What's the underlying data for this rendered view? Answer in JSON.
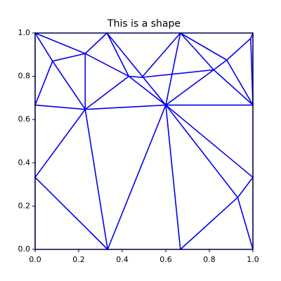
{
  "chart_data": {
    "type": "triplot",
    "title": "This is a shape",
    "color": "#0000ee",
    "x": [
      0,
      0.08,
      0.23,
      0.33,
      0.43,
      0.49,
      0.667,
      0.82,
      0.88,
      0.99,
      1,
      1,
      0,
      0.23,
      0.6,
      0,
      0.333,
      0.667,
      0.93,
      1,
      1,
      0
    ],
    "y": [
      1,
      0.87,
      0.905,
      1,
      0.8,
      0.795,
      1,
      0.83,
      0.875,
      0.975,
      1,
      0.667,
      0.667,
      0.647,
      0.667,
      0.333,
      0,
      0,
      0.24,
      0.333,
      0,
      0
    ],
    "edges": [
      [
        0,
        1
      ],
      [
        0,
        2
      ],
      [
        0,
        12
      ],
      [
        1,
        2
      ],
      [
        1,
        13
      ],
      [
        2,
        13
      ],
      [
        2,
        3
      ],
      [
        2,
        4
      ],
      [
        3,
        4
      ],
      [
        3,
        14
      ],
      [
        4,
        5
      ],
      [
        4,
        13
      ],
      [
        4,
        14
      ],
      [
        5,
        6
      ],
      [
        5,
        7
      ],
      [
        6,
        14
      ],
      [
        6,
        7
      ],
      [
        6,
        8
      ],
      [
        7,
        8
      ],
      [
        7,
        14
      ],
      [
        7,
        11
      ],
      [
        8,
        9
      ],
      [
        8,
        11
      ],
      [
        9,
        10
      ],
      [
        9,
        11
      ],
      [
        10,
        11
      ],
      [
        12,
        13
      ],
      [
        13,
        14
      ],
      [
        14,
        11
      ],
      [
        12,
        1
      ],
      [
        15,
        13
      ],
      [
        15,
        16
      ],
      [
        13,
        16
      ],
      [
        14,
        16
      ],
      [
        14,
        17
      ],
      [
        14,
        18
      ],
      [
        14,
        19
      ],
      [
        17,
        18
      ],
      [
        18,
        19
      ],
      [
        18,
        20
      ],
      [
        19,
        20
      ],
      [
        21,
        15
      ],
      [
        21,
        16
      ],
      [
        16,
        17
      ],
      [
        17,
        20
      ],
      [
        11,
        19
      ],
      [
        15,
        12
      ],
      [
        0,
        3
      ],
      [
        3,
        6
      ],
      [
        6,
        10
      ]
    ],
    "xlim": [
      0,
      1
    ],
    "ylim": [
      0,
      1
    ],
    "xticks": [
      {
        "value": 0,
        "label": "0.0"
      },
      {
        "value": 0.2,
        "label": "0.2"
      },
      {
        "value": 0.4,
        "label": "0.4"
      },
      {
        "value": 0.6,
        "label": "0.6"
      },
      {
        "value": 0.8,
        "label": "0.8"
      },
      {
        "value": 1,
        "label": "1.0"
      }
    ],
    "yticks": [
      {
        "value": 0,
        "label": "0.0"
      },
      {
        "value": 0.2,
        "label": "0.2"
      },
      {
        "value": 0.4,
        "label": "0.4"
      },
      {
        "value": 0.6,
        "label": "0.6"
      },
      {
        "value": 0.8,
        "label": "0.8"
      },
      {
        "value": 1,
        "label": "1.0"
      }
    ]
  }
}
